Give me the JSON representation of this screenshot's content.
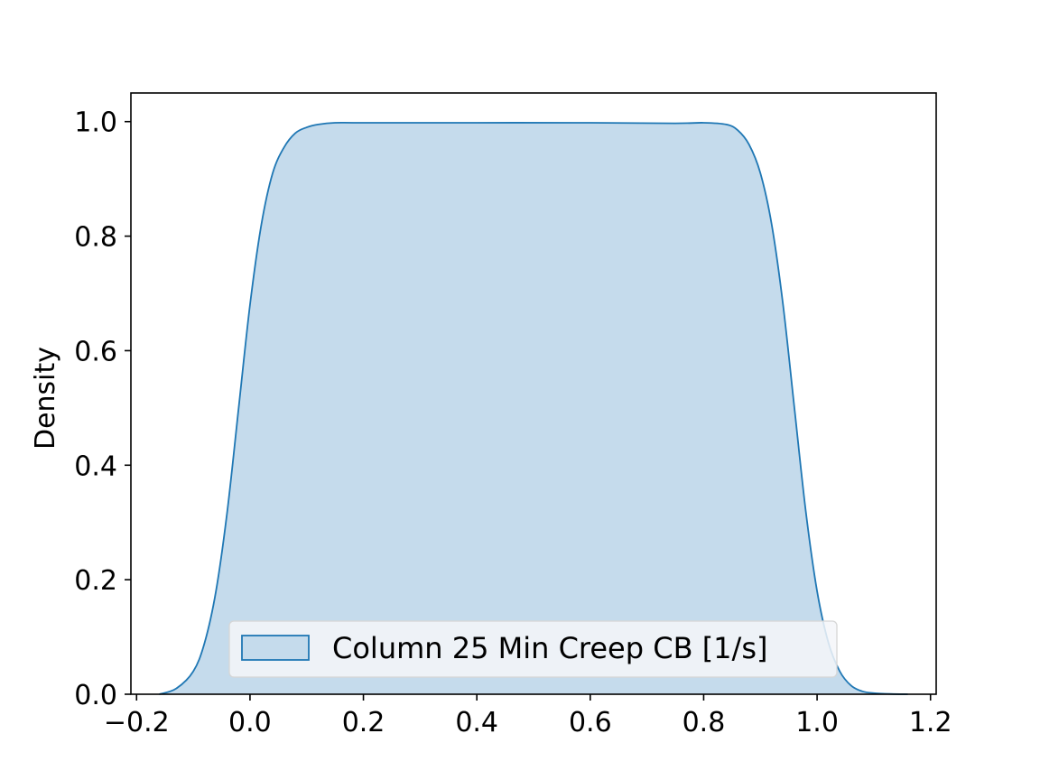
{
  "chart_data": {
    "type": "area",
    "title": "",
    "xlabel": "",
    "ylabel": "Density",
    "xlim": [
      -0.21,
      1.21
    ],
    "ylim": [
      0,
      1.05
    ],
    "xticks": [
      -0.2,
      0.0,
      0.2,
      0.4,
      0.6,
      0.8,
      1.0,
      1.2
    ],
    "xtick_labels": [
      "−0.2",
      "0.0",
      "0.2",
      "0.4",
      "0.6",
      "0.8",
      "1.0",
      "1.2"
    ],
    "yticks": [
      0.0,
      0.2,
      0.4,
      0.6,
      0.8,
      1.0
    ],
    "ytick_labels": [
      "0.0",
      "0.2",
      "0.4",
      "0.6",
      "0.8",
      "1.0"
    ],
    "grid": false,
    "legend_position": "lower-center",
    "series": [
      {
        "name": "Column 25 Min Creep CB [1/s]",
        "color": "#1f77b4",
        "fill_color": "#c5dbec",
        "x": [
          -0.16,
          -0.13,
          -0.1,
          -0.08,
          -0.06,
          -0.04,
          -0.02,
          0.0,
          0.02,
          0.04,
          0.06,
          0.08,
          0.1,
          0.12,
          0.15,
          0.2,
          0.4,
          0.6,
          0.75,
          0.8,
          0.84,
          0.86,
          0.88,
          0.9,
          0.92,
          0.94,
          0.96,
          0.98,
          1.0,
          1.02,
          1.04,
          1.06,
          1.08,
          1.1,
          1.13,
          1.16
        ],
        "y": [
          0.0,
          0.01,
          0.04,
          0.09,
          0.18,
          0.32,
          0.5,
          0.68,
          0.82,
          0.91,
          0.955,
          0.98,
          0.99,
          0.995,
          0.998,
          0.998,
          0.998,
          0.998,
          0.997,
          0.998,
          0.995,
          0.985,
          0.96,
          0.91,
          0.82,
          0.68,
          0.5,
          0.32,
          0.18,
          0.09,
          0.04,
          0.015,
          0.005,
          0.002,
          0.0005,
          0.0
        ]
      }
    ]
  }
}
